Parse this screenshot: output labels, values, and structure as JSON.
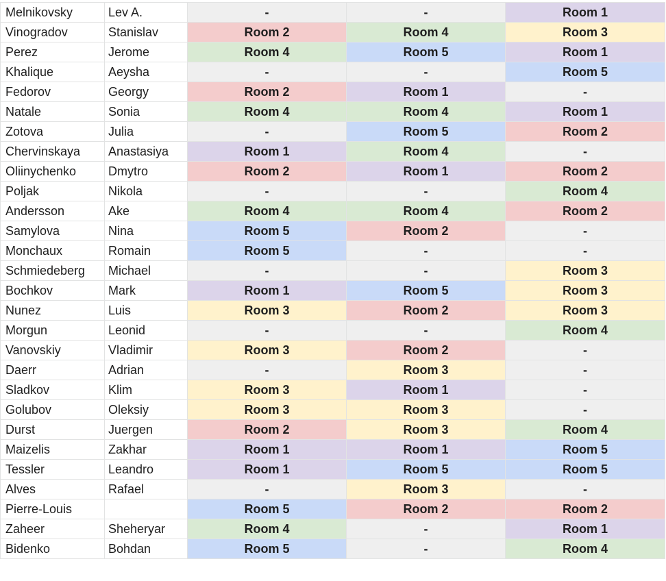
{
  "colors": {
    "none": "#efefef",
    "Room 1": "#dcd4ea",
    "Room 2": "#f4cccc",
    "Room 3": "#fff2cc",
    "Room 4": "#d9ead3",
    "Room 5": "#c9daf8"
  },
  "rows": [
    {
      "last": "Melnikovsky",
      "first": "Lev A.",
      "rooms": [
        "-",
        "-",
        "Room 1"
      ]
    },
    {
      "last": "Vinogradov",
      "first": "Stanislav",
      "rooms": [
        "Room 2",
        "Room 4",
        "Room 3"
      ]
    },
    {
      "last": "Perez",
      "first": "Jerome",
      "rooms": [
        "Room 4",
        "Room 5",
        "Room 1"
      ]
    },
    {
      "last": "Khalique",
      "first": "Aeysha",
      "rooms": [
        "-",
        "-",
        "Room 5"
      ]
    },
    {
      "last": "Fedorov",
      "first": "Georgy",
      "rooms": [
        "Room 2",
        "Room 1",
        "-"
      ]
    },
    {
      "last": "Natale",
      "first": "Sonia",
      "rooms": [
        "Room 4",
        "Room 4",
        "Room 1"
      ]
    },
    {
      "last": "Zotova",
      "first": "Julia",
      "rooms": [
        "-",
        "Room 5",
        "Room 2"
      ]
    },
    {
      "last": "Chervinskaya",
      "first": "Anastasiya",
      "rooms": [
        "Room 1",
        "Room 4",
        "-"
      ]
    },
    {
      "last": "Oliinychenko",
      "first": "Dmytro",
      "rooms": [
        "Room 2",
        "Room 1",
        "Room 2"
      ]
    },
    {
      "last": "Poljak",
      "first": "Nikola",
      "rooms": [
        "-",
        "-",
        "Room 4"
      ]
    },
    {
      "last": "Andersson",
      "first": "Ake",
      "rooms": [
        "Room 4",
        "Room 4",
        "Room 2"
      ]
    },
    {
      "last": "Samylova",
      "first": "Nina",
      "rooms": [
        "Room 5",
        "Room 2",
        "-"
      ]
    },
    {
      "last": "Monchaux",
      "first": "Romain",
      "rooms": [
        "Room 5",
        "-",
        "-"
      ]
    },
    {
      "last": "Schmiedeberg",
      "first": "Michael",
      "rooms": [
        "-",
        "-",
        "Room 3"
      ]
    },
    {
      "last": "Bochkov",
      "first": "Mark",
      "rooms": [
        "Room 1",
        "Room 5",
        "Room 3"
      ]
    },
    {
      "last": "Nunez",
      "first": "Luis",
      "rooms": [
        "Room 3",
        "Room 2",
        "Room 3"
      ]
    },
    {
      "last": "Morgun",
      "first": "Leonid",
      "rooms": [
        "-",
        "-",
        "Room 4"
      ]
    },
    {
      "last": "Vanovskiy",
      "first": "Vladimir",
      "rooms": [
        "Room 3",
        "Room 2",
        "-"
      ]
    },
    {
      "last": "Daerr",
      "first": "Adrian",
      "rooms": [
        "-",
        "Room 3",
        "-"
      ]
    },
    {
      "last": "Sladkov",
      "first": "Klim",
      "rooms": [
        "Room 3",
        "Room 1",
        "-"
      ]
    },
    {
      "last": "Golubov",
      "first": "Oleksiy",
      "rooms": [
        "Room 3",
        "Room 3",
        "-"
      ]
    },
    {
      "last": "Durst",
      "first": "Juergen",
      "rooms": [
        "Room 2",
        "Room 3",
        "Room 4"
      ]
    },
    {
      "last": "Maizelis",
      "first": "Zakhar",
      "rooms": [
        "Room 1",
        "Room 1",
        "Room 5"
      ]
    },
    {
      "last": "Tessler",
      "first": "Leandro",
      "rooms": [
        "Room 1",
        "Room 5",
        "Room 5"
      ]
    },
    {
      "last": "Alves",
      "first": "Rafael",
      "rooms": [
        "-",
        "Room 3",
        "-"
      ]
    },
    {
      "last": "Pierre-Louis",
      "first": "",
      "rooms": [
        "Room 5",
        "Room 2",
        "Room 2"
      ]
    },
    {
      "last": "Zaheer",
      "first": "Sheheryar",
      "rooms": [
        "Room 4",
        "-",
        "Room 1"
      ]
    },
    {
      "last": "Bidenko",
      "first": "Bohdan",
      "rooms": [
        "Room 5",
        "-",
        "Room 4"
      ]
    }
  ]
}
